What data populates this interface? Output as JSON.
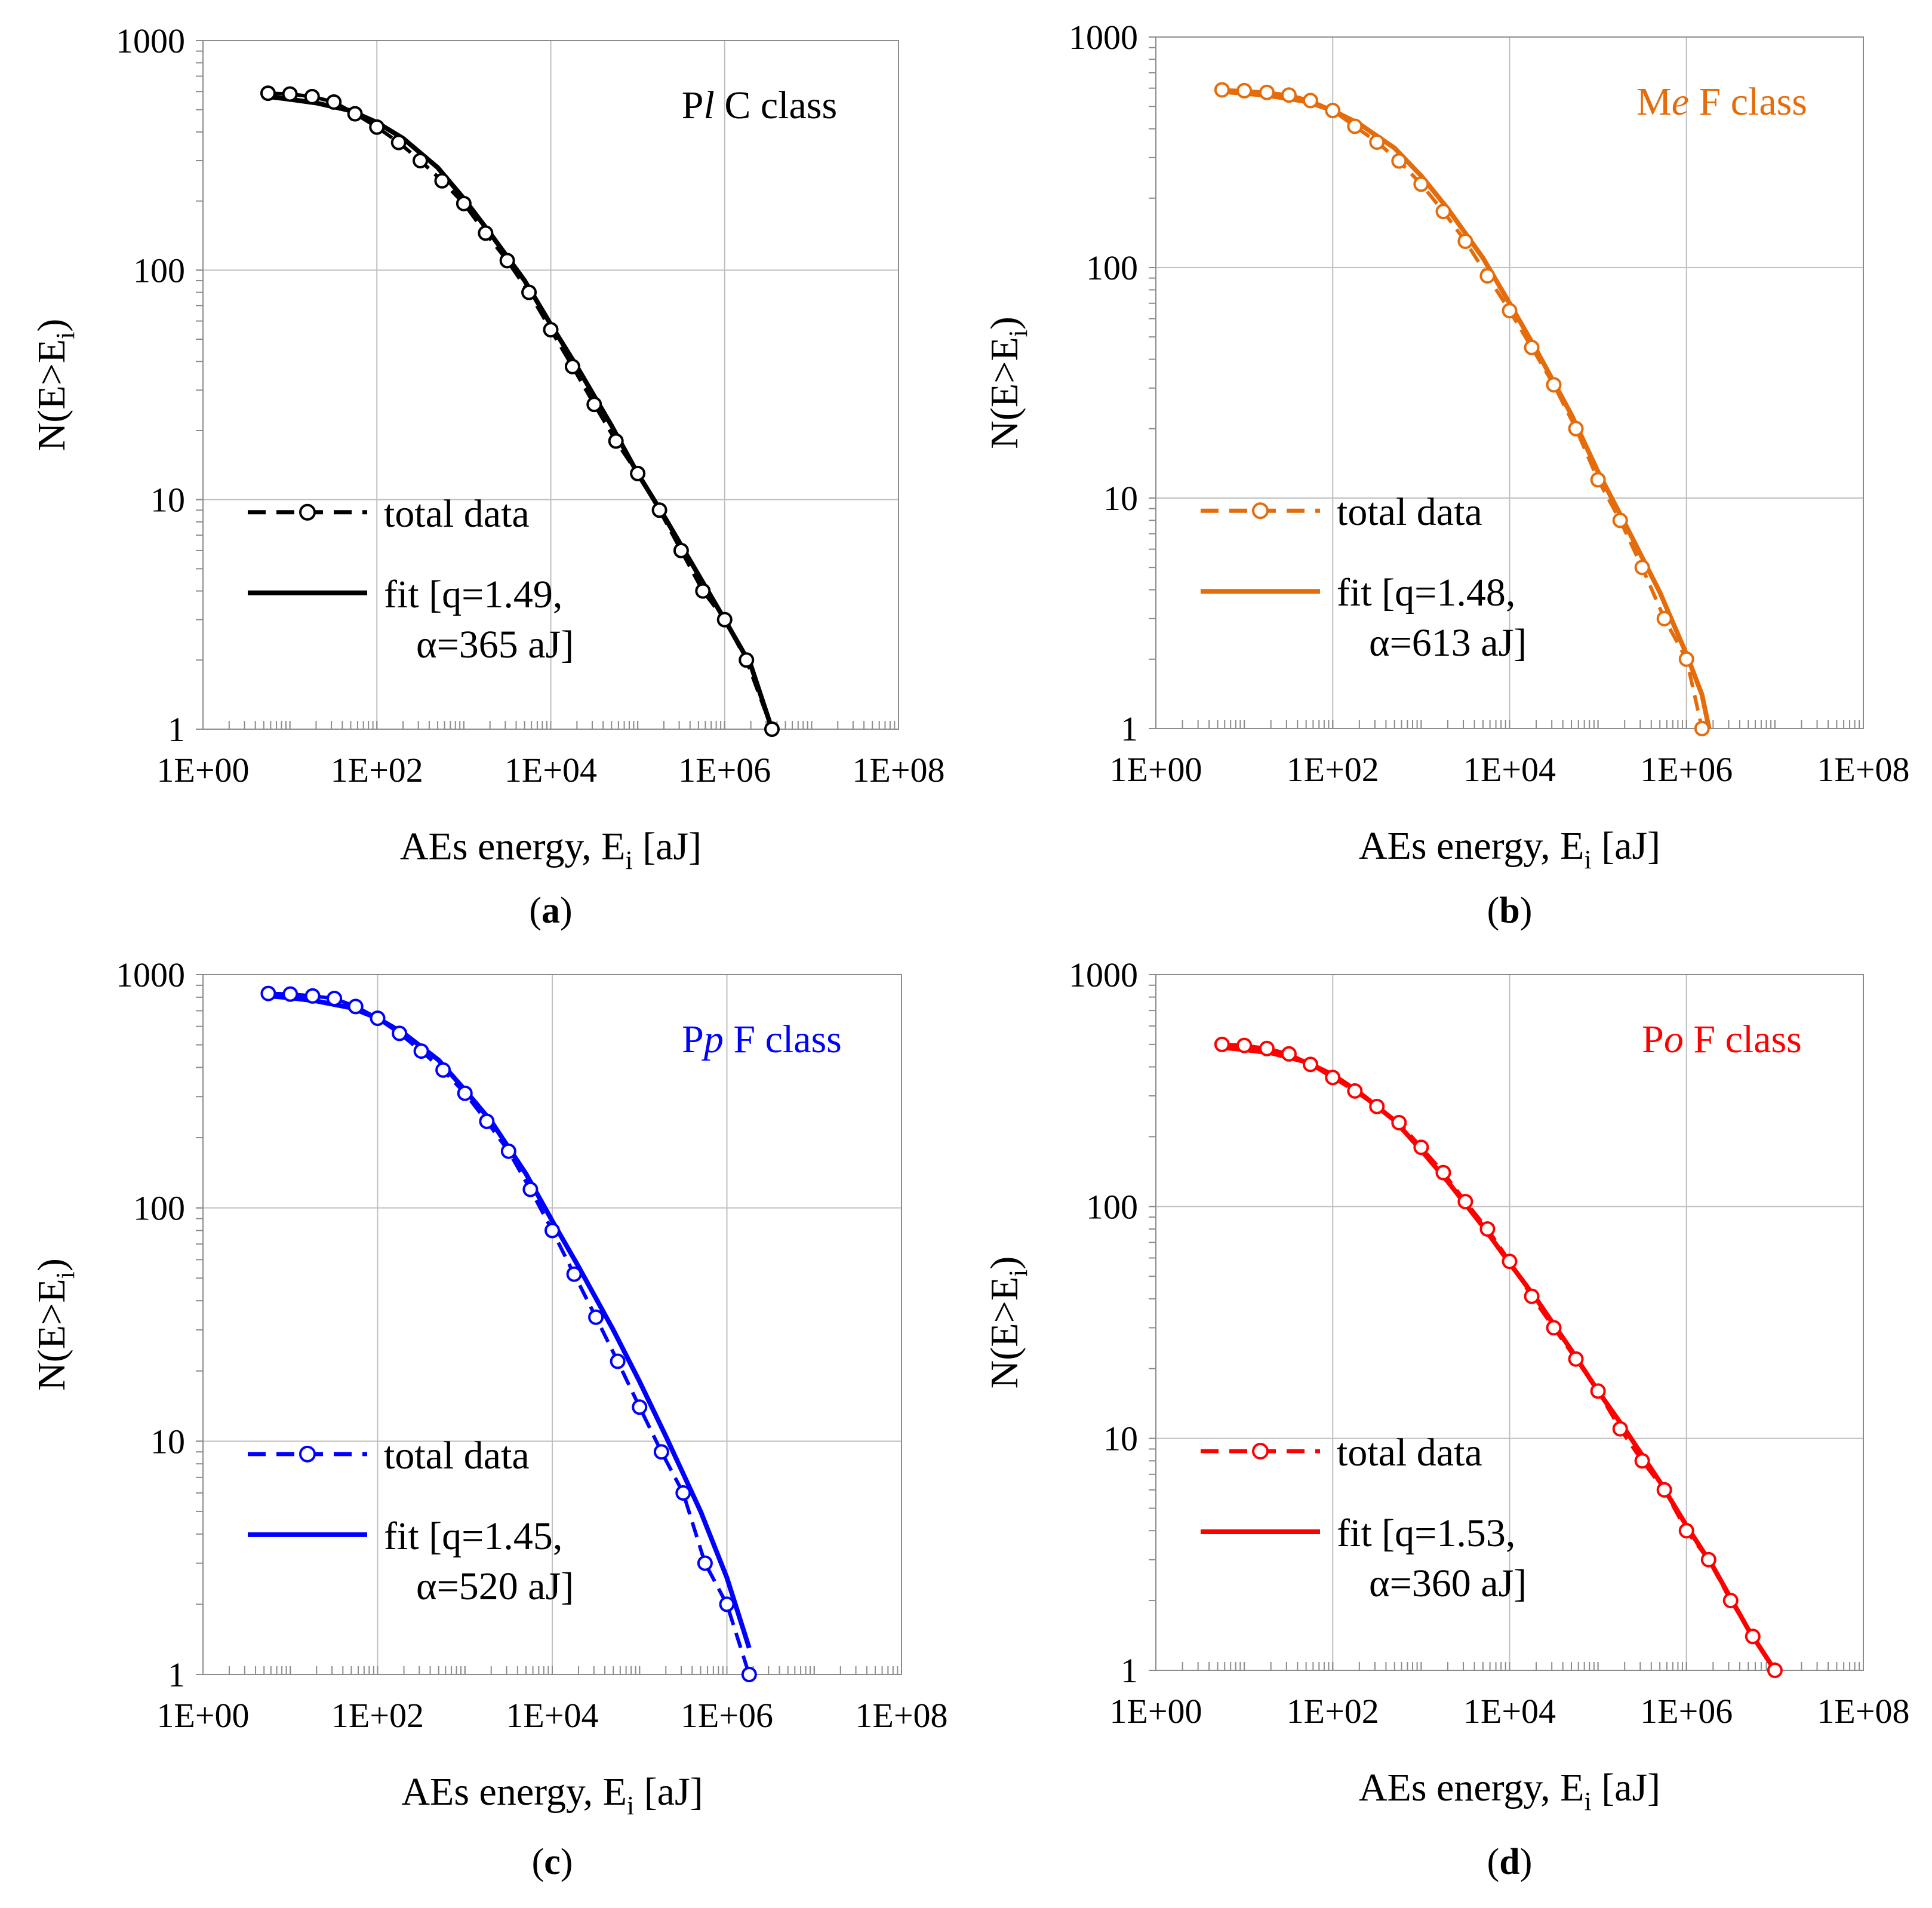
{
  "chart_data": [
    {
      "type": "line",
      "panel": "a",
      "panel_label": "a",
      "class_label": {
        "prefix": "P",
        "italic": "l",
        "suffix": "C class"
      },
      "color": "#000000",
      "xlabel": "AEs energy, E",
      "xlabel_sub": "i",
      "xlabel_suffix": " [aJ]",
      "ylabel": "N(E>E",
      "ylabel_sub": "i",
      "ylabel_suffix": ")",
      "xscale": "log",
      "yscale": "log",
      "xlim": [
        1,
        100000000
      ],
      "ylim": [
        1,
        1000
      ],
      "xticks": [
        1,
        100,
        10000,
        1000000,
        100000000
      ],
      "xtick_labels": [
        "1E+00",
        "1E+02",
        "1E+04",
        "1E+06",
        "1E+08"
      ],
      "yticks": [
        1,
        10,
        100,
        1000
      ],
      "ytick_labels": [
        "1",
        "10",
        "100",
        "1000"
      ],
      "grid": true,
      "legend": {
        "total_label": "total data",
        "fit_line1": "fit [q=1.49,",
        "fit_line2": "α=365 aJ]"
      },
      "fit_params": {
        "q": 1.49,
        "alpha": 365
      },
      "total_data": {
        "x": [
          5.6,
          10,
          18,
          32,
          56,
          100,
          178,
          316,
          562,
          1000,
          1780,
          3160,
          5620,
          10000,
          17800,
          31600,
          56200,
          100000,
          178000,
          316000,
          562000,
          1000000,
          1780000,
          3500000
        ],
        "y": [
          590,
          585,
          570,
          540,
          480,
          420,
          360,
          300,
          245,
          195,
          145,
          110,
          80,
          55,
          38,
          26,
          18,
          13,
          9,
          6,
          4,
          3,
          2,
          1
        ]
      },
      "fit": {
        "x": [
          5.6,
          10,
          20,
          50,
          100,
          200,
          500,
          1000,
          2000,
          5000,
          10000,
          20000,
          50000,
          100000,
          200000,
          500000,
          1000000,
          2000000,
          3500000
        ],
        "y": [
          570,
          555,
          535,
          495,
          440,
          375,
          280,
          205,
          145,
          90,
          58,
          38,
          21,
          13,
          8.5,
          4.7,
          3,
          1.9,
          1
        ]
      }
    },
    {
      "type": "line",
      "panel": "b",
      "panel_label": "b",
      "class_label": {
        "prefix": "M",
        "italic": "e",
        "suffix": "F class"
      },
      "color": "#E46C0A",
      "xlabel": "AEs energy, E",
      "xlabel_sub": "i",
      "xlabel_suffix": " [aJ]",
      "ylabel": "N(E>E",
      "ylabel_sub": "i",
      "ylabel_suffix": ")",
      "xscale": "log",
      "yscale": "log",
      "xlim": [
        1,
        100000000
      ],
      "ylim": [
        1,
        1000
      ],
      "xticks": [
        1,
        100,
        10000,
        1000000,
        100000000
      ],
      "xtick_labels": [
        "1E+00",
        "1E+02",
        "1E+04",
        "1E+06",
        "1E+08"
      ],
      "yticks": [
        1,
        10,
        100,
        1000
      ],
      "ytick_labels": [
        "1",
        "10",
        "100",
        "1000"
      ],
      "grid": true,
      "legend": {
        "total_label": "total data",
        "fit_line1": "fit [q=1.48,",
        "fit_line2": "α=613 aJ]"
      },
      "fit_params": {
        "q": 1.48,
        "alpha": 613
      },
      "total_data": {
        "x": [
          5.6,
          10,
          18,
          32,
          56,
          100,
          178,
          316,
          562,
          1000,
          1780,
          3160,
          5620,
          10000,
          17800,
          31600,
          56200,
          100000,
          178000,
          316000,
          562000,
          1000000,
          1500000
        ],
        "y": [
          590,
          585,
          575,
          560,
          530,
          480,
          410,
          350,
          290,
          230,
          175,
          130,
          92,
          65,
          45,
          31,
          20,
          12,
          8,
          5,
          3,
          2,
          1
        ]
      },
      "fit": {
        "x": [
          5.6,
          10,
          20,
          50,
          100,
          200,
          500,
          1000,
          2000,
          5000,
          10000,
          20000,
          50000,
          100000,
          200000,
          500000,
          1000000,
          1500000,
          1800000
        ],
        "y": [
          580,
          570,
          555,
          525,
          480,
          420,
          330,
          250,
          180,
          110,
          70,
          44,
          23,
          13,
          7.8,
          3.9,
          2.1,
          1.4,
          1
        ]
      }
    },
    {
      "type": "line",
      "panel": "c",
      "panel_label": "c",
      "class_label": {
        "prefix": "P",
        "italic": "p",
        "suffix": "F class"
      },
      "color": "#0000FF",
      "xlabel": "AEs energy, E",
      "xlabel_sub": "i",
      "xlabel_suffix": " [aJ]",
      "ylabel": "N(E>E",
      "ylabel_sub": "i",
      "ylabel_suffix": ")",
      "xscale": "log",
      "yscale": "log",
      "xlim": [
        1,
        100000000
      ],
      "ylim": [
        1,
        1000
      ],
      "xticks": [
        1,
        100,
        10000,
        1000000,
        100000000
      ],
      "xtick_labels": [
        "1E+00",
        "1E+02",
        "1E+04",
        "1E+06",
        "1E+08"
      ],
      "yticks": [
        1,
        10,
        100,
        1000
      ],
      "ytick_labels": [
        "1",
        "10",
        "100",
        "1000"
      ],
      "grid": true,
      "legend": {
        "total_label": "total data",
        "fit_line1": "fit [q=1.45,",
        "fit_line2": "α=520 aJ]"
      },
      "fit_params": {
        "q": 1.45,
        "alpha": 520
      },
      "total_data": {
        "x": [
          5.6,
          10,
          18,
          32,
          56,
          100,
          178,
          316,
          562,
          1000,
          1780,
          3160,
          5620,
          10000,
          17800,
          31600,
          56200,
          100000,
          178000,
          316000,
          562000,
          1000000,
          1800000
        ],
        "y": [
          830,
          825,
          810,
          790,
          730,
          650,
          560,
          470,
          390,
          310,
          235,
          175,
          120,
          80,
          52,
          34,
          22,
          14,
          9,
          6,
          3,
          2,
          1
        ]
      },
      "fit": {
        "x": [
          5.6,
          10,
          20,
          50,
          100,
          200,
          500,
          1000,
          2000,
          5000,
          10000,
          20000,
          50000,
          100000,
          200000,
          500000,
          1000000,
          1800000
        ],
        "y": [
          810,
          795,
          770,
          720,
          650,
          560,
          430,
          320,
          235,
          140,
          88,
          56,
          30,
          18,
          10.5,
          5,
          2.6,
          1.3
        ]
      }
    },
    {
      "type": "line",
      "panel": "d",
      "panel_label": "d",
      "class_label": {
        "prefix": "P",
        "italic": "o",
        "suffix": "F class"
      },
      "color": "#FF0000",
      "xlabel": "AEs energy, E",
      "xlabel_sub": "i",
      "xlabel_suffix": " [aJ]",
      "ylabel": "N(E>E",
      "ylabel_sub": "i",
      "ylabel_suffix": ")",
      "xscale": "log",
      "yscale": "log",
      "xlim": [
        1,
        100000000
      ],
      "ylim": [
        1,
        1000
      ],
      "xticks": [
        1,
        100,
        10000,
        1000000,
        100000000
      ],
      "xtick_labels": [
        "1E+00",
        "1E+02",
        "1E+04",
        "1E+06",
        "1E+08"
      ],
      "yticks": [
        1,
        10,
        100,
        1000
      ],
      "ytick_labels": [
        "1",
        "10",
        "100",
        "1000"
      ],
      "grid": true,
      "legend": {
        "total_label": "total data",
        "fit_line1": "fit [q=1.53,",
        "fit_line2": "α=360 aJ]"
      },
      "fit_params": {
        "q": 1.53,
        "alpha": 360
      },
      "total_data": {
        "x": [
          5.6,
          10,
          18,
          32,
          56,
          100,
          178,
          316,
          562,
          1000,
          1780,
          3160,
          5620,
          10000,
          17800,
          31600,
          56200,
          100000,
          178000,
          316000,
          562000,
          1000000,
          1780000,
          3160000,
          5620000,
          10000000
        ],
        "y": [
          500,
          495,
          480,
          455,
          410,
          360,
          315,
          270,
          230,
          180,
          140,
          105,
          80,
          58,
          41,
          30,
          22,
          16,
          11,
          8,
          6,
          4,
          3,
          2,
          1.4,
          1
        ]
      },
      "fit": {
        "x": [
          5.6,
          10,
          20,
          50,
          100,
          200,
          500,
          1000,
          2000,
          5000,
          10000,
          20000,
          50000,
          100000,
          200000,
          500000,
          1000000,
          2000000,
          5000000,
          10000000
        ],
        "y": [
          485,
          475,
          460,
          420,
          370,
          310,
          235,
          175,
          128,
          82,
          57,
          40,
          24,
          16,
          11,
          6.5,
          4.2,
          2.8,
          1.5,
          1
        ]
      }
    }
  ]
}
